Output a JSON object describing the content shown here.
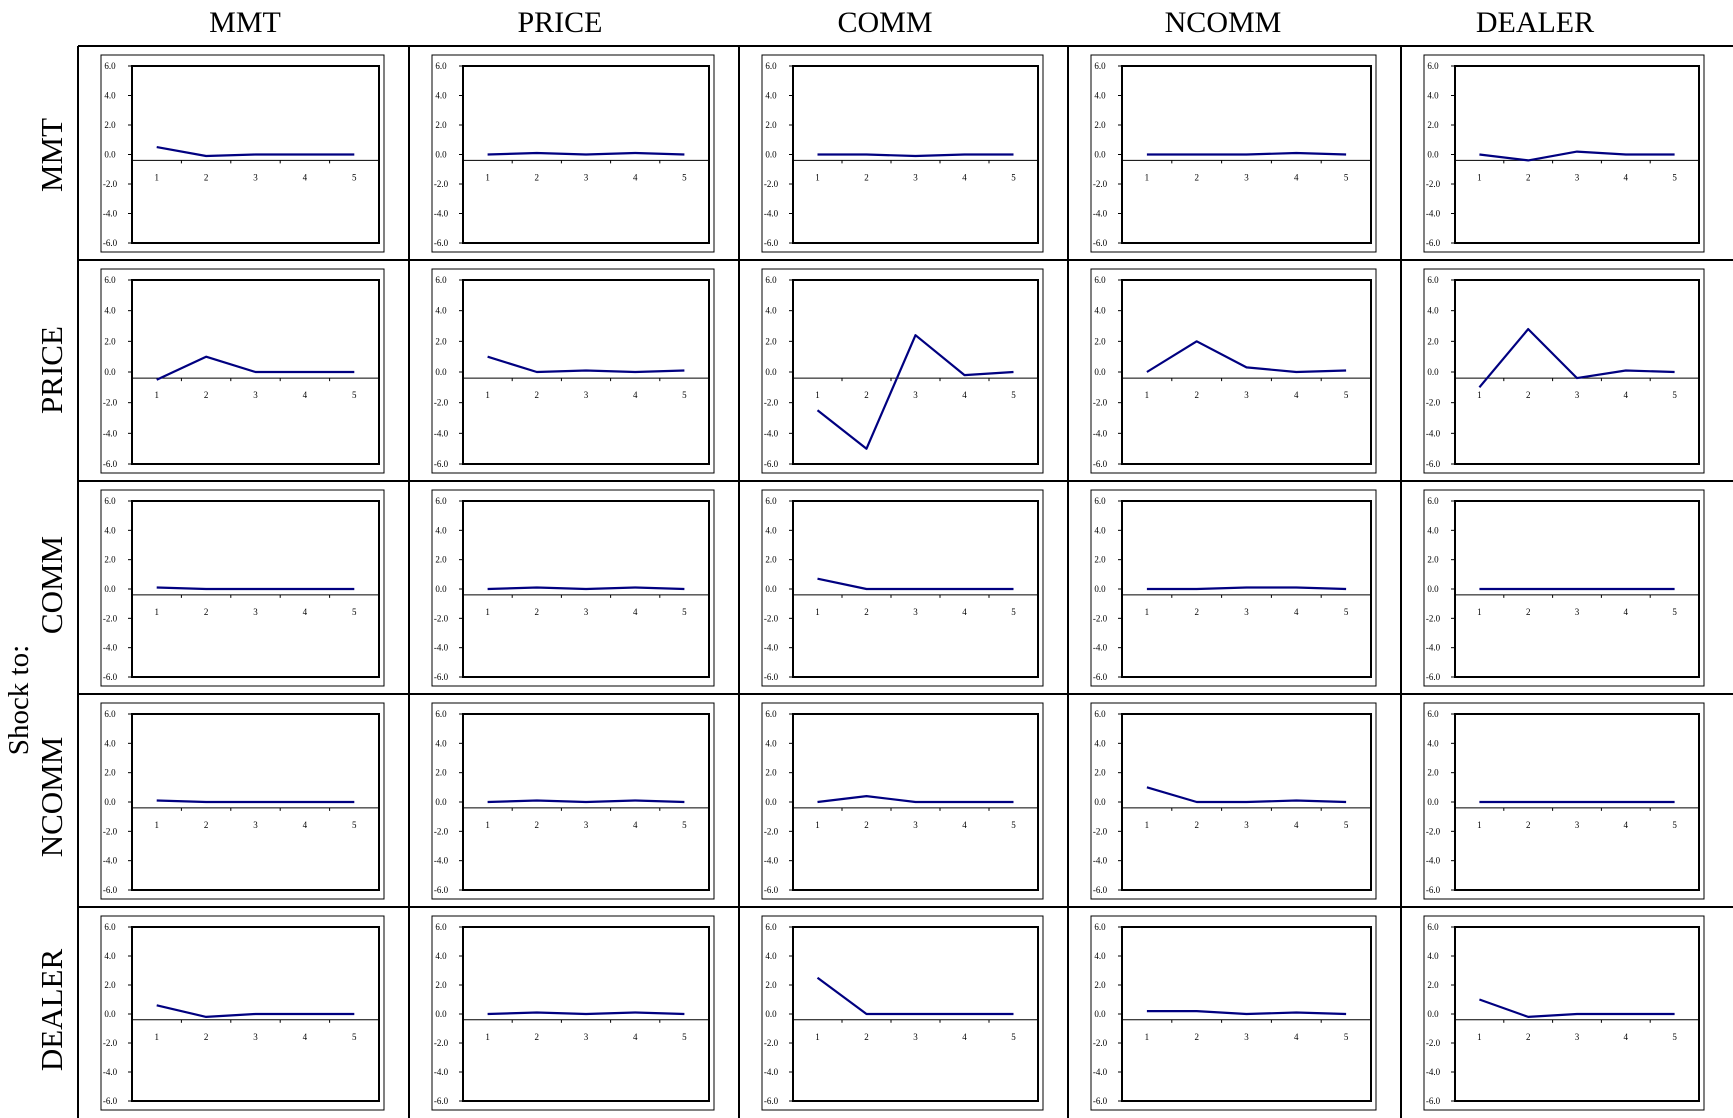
{
  "figure": {
    "col_headers": [
      "MMT",
      "PRICE",
      "COMM",
      "NCOMM",
      "DEALER"
    ],
    "row_headers": [
      "MMT",
      "PRICE",
      "COMM",
      "NCOMM",
      "DEALER"
    ],
    "shock_label": "Shock to:"
  },
  "chart_data": {
    "type": "line",
    "layout": "grid 5x5 of small multiples; rows = shocked variable, columns = responding variable",
    "x": [
      1,
      2,
      3,
      4,
      5
    ],
    "ylim": [
      -6.0,
      6.0
    ],
    "yticks": [
      "6.0",
      "4.0",
      "2.0",
      "0.0",
      "-2.0",
      "-4.0",
      "-6.0"
    ],
    "xticks": [
      "1",
      "2",
      "3",
      "4",
      "5"
    ],
    "line_color": "#000080",
    "panels": [
      [
        {
          "values": [
            0.5,
            -0.1,
            0.0,
            0.0,
            0.0
          ]
        },
        {
          "values": [
            0.0,
            0.1,
            0.0,
            0.1,
            0.0
          ]
        },
        {
          "values": [
            0.0,
            0.0,
            -0.1,
            0.0,
            0.0
          ]
        },
        {
          "values": [
            0.0,
            0.0,
            0.0,
            0.1,
            0.0
          ]
        },
        {
          "values": [
            0.0,
            -0.4,
            0.2,
            0.0,
            0.0
          ]
        }
      ],
      [
        {
          "values": [
            -0.5,
            1.0,
            0.0,
            0.0,
            0.0
          ]
        },
        {
          "values": [
            1.0,
            0.0,
            0.1,
            0.0,
            0.1
          ]
        },
        {
          "values": [
            -2.5,
            -5.0,
            2.4,
            -0.2,
            0.0
          ]
        },
        {
          "values": [
            0.0,
            2.0,
            0.3,
            0.0,
            0.1
          ]
        },
        {
          "values": [
            -1.0,
            2.8,
            -0.4,
            0.1,
            0.0
          ]
        }
      ],
      [
        {
          "values": [
            0.1,
            0.0,
            0.0,
            0.0,
            0.0
          ]
        },
        {
          "values": [
            0.0,
            0.1,
            0.0,
            0.1,
            0.0
          ]
        },
        {
          "values": [
            0.7,
            0.0,
            0.0,
            0.0,
            0.0
          ]
        },
        {
          "values": [
            0.0,
            0.0,
            0.1,
            0.1,
            0.0
          ]
        },
        {
          "values": [
            0.0,
            0.0,
            0.0,
            0.0,
            0.0
          ]
        }
      ],
      [
        {
          "values": [
            0.1,
            0.0,
            0.0,
            0.0,
            0.0
          ]
        },
        {
          "values": [
            0.0,
            0.1,
            0.0,
            0.1,
            0.0
          ]
        },
        {
          "values": [
            0.0,
            0.4,
            0.0,
            0.0,
            0.0
          ]
        },
        {
          "values": [
            1.0,
            0.0,
            0.0,
            0.1,
            0.0
          ]
        },
        {
          "values": [
            0.0,
            0.0,
            0.0,
            0.0,
            0.0
          ]
        }
      ],
      [
        {
          "values": [
            0.6,
            -0.2,
            0.0,
            0.0,
            0.0
          ]
        },
        {
          "values": [
            0.0,
            0.1,
            0.0,
            0.1,
            0.0
          ]
        },
        {
          "values": [
            2.5,
            0.0,
            0.0,
            0.0,
            0.0
          ]
        },
        {
          "values": [
            0.2,
            0.2,
            0.0,
            0.1,
            0.0
          ]
        },
        {
          "values": [
            1.0,
            -0.2,
            0.0,
            0.0,
            0.0
          ]
        }
      ]
    ]
  }
}
